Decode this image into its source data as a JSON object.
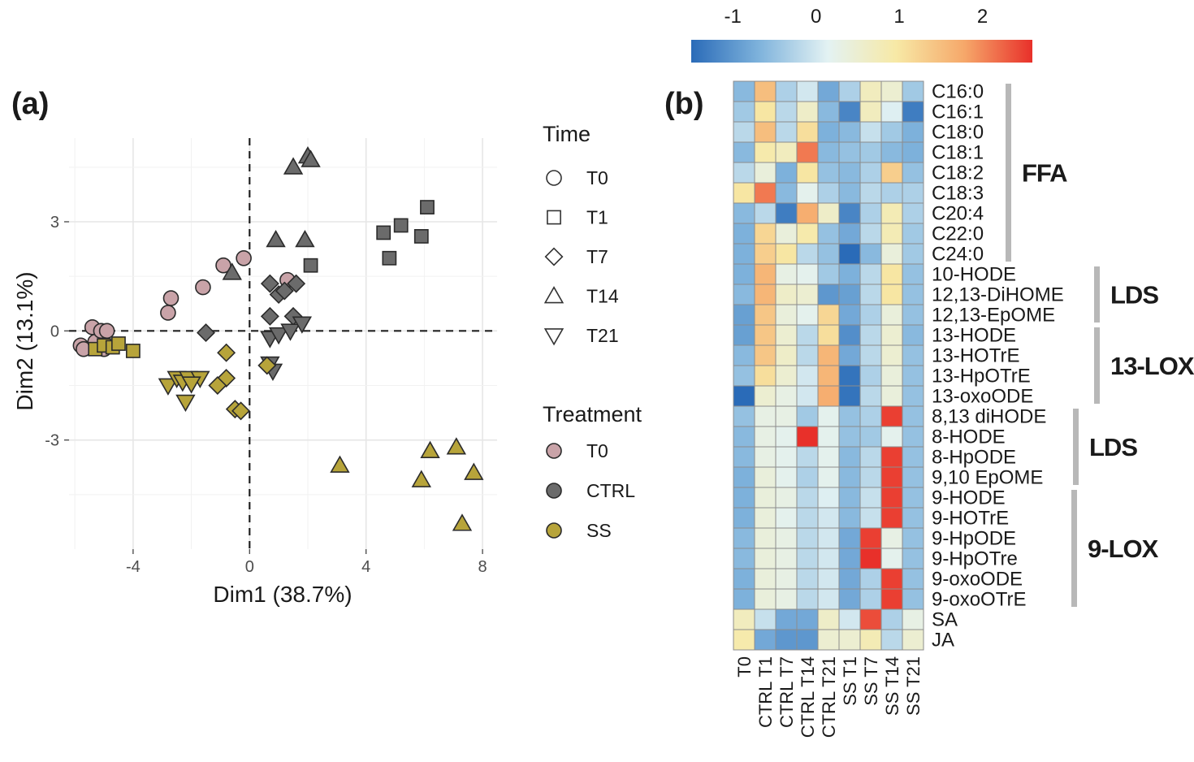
{
  "figure": {
    "panel_a_label": "(a)",
    "panel_b_label": "(b)"
  },
  "chart_data": [
    {
      "type": "scatter",
      "title": "",
      "xlabel": "Dim1 (38.7%)",
      "ylabel": "Dim2 (13.1%)",
      "xlim": [
        -6.2,
        8.5
      ],
      "ylim": [
        -6.0,
        5.3
      ],
      "xticks": [
        -4,
        0,
        4,
        8
      ],
      "xtick_labels": [
        "-4",
        "0",
        "4",
        "8"
      ],
      "yticks": [
        3,
        0,
        -3
      ],
      "ytick_labels": [
        "3",
        "0",
        "-3"
      ],
      "grid": true,
      "reference_lines": {
        "x": 0,
        "y": 0
      },
      "legend_time": {
        "title": "Time",
        "items": [
          {
            "label": "T0",
            "shape": "circle"
          },
          {
            "label": "T1",
            "shape": "square"
          },
          {
            "label": "T7",
            "shape": "diamond"
          },
          {
            "label": "T14",
            "shape": "triangle-up"
          },
          {
            "label": "T21",
            "shape": "triangle-down"
          }
        ]
      },
      "legend_treatment": {
        "title": "Treatment",
        "items": [
          {
            "label": "T0",
            "color": "#c9a3a8"
          },
          {
            "label": "CTRL",
            "color": "#6b6b6b"
          },
          {
            "label": "SS",
            "color": "#b7a43a"
          }
        ]
      },
      "series": [
        {
          "name": "T0",
          "points": [
            {
              "x": -5.8,
              "y": -0.4,
              "shape": "circle"
            },
            {
              "x": -5.7,
              "y": -0.5,
              "shape": "circle"
            },
            {
              "x": -5.4,
              "y": 0.1,
              "shape": "circle"
            },
            {
              "x": -5.3,
              "y": -0.3,
              "shape": "circle"
            },
            {
              "x": -5.1,
              "y": 0.0,
              "shape": "circle"
            },
            {
              "x": -5.0,
              "y": -0.5,
              "shape": "circle"
            },
            {
              "x": -4.9,
              "y": 0.0,
              "shape": "circle"
            },
            {
              "x": -2.7,
              "y": 0.9,
              "shape": "circle"
            },
            {
              "x": -2.8,
              "y": 0.5,
              "shape": "circle"
            },
            {
              "x": -1.6,
              "y": 1.2,
              "shape": "circle"
            },
            {
              "x": -0.9,
              "y": 1.8,
              "shape": "circle"
            },
            {
              "x": -0.2,
              "y": 2.0,
              "shape": "circle"
            },
            {
              "x": 1.3,
              "y": 1.4,
              "shape": "circle"
            }
          ]
        },
        {
          "name": "CTRL",
          "points": [
            {
              "x": 4.6,
              "y": 2.7,
              "shape": "square"
            },
            {
              "x": 4.8,
              "y": 2.0,
              "shape": "square"
            },
            {
              "x": 5.2,
              "y": 2.9,
              "shape": "square"
            },
            {
              "x": 5.9,
              "y": 2.6,
              "shape": "square"
            },
            {
              "x": 6.1,
              "y": 3.4,
              "shape": "square"
            },
            {
              "x": 2.1,
              "y": 1.8,
              "shape": "square"
            },
            {
              "x": -1.5,
              "y": -0.05,
              "shape": "diamond"
            },
            {
              "x": 0.7,
              "y": 1.3,
              "shape": "diamond"
            },
            {
              "x": 1.0,
              "y": 1.0,
              "shape": "diamond"
            },
            {
              "x": 1.2,
              "y": 1.1,
              "shape": "diamond"
            },
            {
              "x": 1.6,
              "y": 1.3,
              "shape": "diamond"
            },
            {
              "x": 0.7,
              "y": 0.4,
              "shape": "diamond"
            },
            {
              "x": 1.5,
              "y": 0.4,
              "shape": "diamond"
            },
            {
              "x": 1.5,
              "y": 4.5,
              "shape": "triangle-up"
            },
            {
              "x": 2.0,
              "y": 4.8,
              "shape": "triangle-up"
            },
            {
              "x": 2.1,
              "y": 4.7,
              "shape": "triangle-up"
            },
            {
              "x": 0.9,
              "y": 2.5,
              "shape": "triangle-up"
            },
            {
              "x": 1.9,
              "y": 2.5,
              "shape": "triangle-up"
            },
            {
              "x": -0.6,
              "y": 1.6,
              "shape": "triangle-up"
            },
            {
              "x": 0.7,
              "y": -0.2,
              "shape": "triangle-down"
            },
            {
              "x": 1.0,
              "y": -0.1,
              "shape": "triangle-down"
            },
            {
              "x": 1.4,
              "y": 0.0,
              "shape": "triangle-down"
            },
            {
              "x": 1.8,
              "y": 0.2,
              "shape": "triangle-down"
            },
            {
              "x": 0.7,
              "y": -0.9,
              "shape": "triangle-down"
            },
            {
              "x": 0.8,
              "y": -1.1,
              "shape": "triangle-down"
            }
          ]
        },
        {
          "name": "SS",
          "points": [
            {
              "x": -5.3,
              "y": -0.5,
              "shape": "square"
            },
            {
              "x": -5.0,
              "y": -0.4,
              "shape": "square"
            },
            {
              "x": -4.7,
              "y": -0.45,
              "shape": "square"
            },
            {
              "x": -4.5,
              "y": -0.35,
              "shape": "square"
            },
            {
              "x": -4.0,
              "y": -0.55,
              "shape": "square"
            },
            {
              "x": -0.8,
              "y": -0.6,
              "shape": "diamond"
            },
            {
              "x": -0.8,
              "y": -1.3,
              "shape": "diamond"
            },
            {
              "x": -1.1,
              "y": -1.5,
              "shape": "diamond"
            },
            {
              "x": -0.5,
              "y": -2.15,
              "shape": "diamond"
            },
            {
              "x": -0.3,
              "y": -2.2,
              "shape": "diamond"
            },
            {
              "x": 0.6,
              "y": -0.95,
              "shape": "diamond"
            },
            {
              "x": 3.1,
              "y": -3.7,
              "shape": "triangle-up"
            },
            {
              "x": 5.9,
              "y": -4.1,
              "shape": "triangle-up"
            },
            {
              "x": 6.2,
              "y": -3.3,
              "shape": "triangle-up"
            },
            {
              "x": 7.1,
              "y": -3.2,
              "shape": "triangle-up"
            },
            {
              "x": 7.7,
              "y": -3.9,
              "shape": "triangle-up"
            },
            {
              "x": 7.3,
              "y": -5.3,
              "shape": "triangle-up"
            },
            {
              "x": -2.8,
              "y": -1.5,
              "shape": "triangle-down"
            },
            {
              "x": -2.5,
              "y": -1.3,
              "shape": "triangle-down"
            },
            {
              "x": -2.3,
              "y": -1.4,
              "shape": "triangle-down"
            },
            {
              "x": -2.1,
              "y": -1.3,
              "shape": "triangle-down"
            },
            {
              "x": -1.7,
              "y": -1.3,
              "shape": "triangle-down"
            },
            {
              "x": -2.0,
              "y": -1.45,
              "shape": "triangle-down"
            },
            {
              "x": -2.2,
              "y": -1.95,
              "shape": "triangle-down"
            }
          ]
        }
      ]
    },
    {
      "type": "heatmap",
      "title": "",
      "colorbar": {
        "ticks": [
          -1,
          0,
          1,
          2
        ],
        "tick_labels": [
          "-1",
          "0",
          "1",
          "2"
        ],
        "range": [
          -1.5,
          2.6
        ],
        "colors": [
          "#2a6bb8",
          "#7fb3dc",
          "#e3f2f3",
          "#f7e9a6",
          "#f6a86a",
          "#e8302a"
        ]
      },
      "columns": [
        "T0",
        "CTRL T1",
        "CTRL T7",
        "CTRL T14",
        "CTRL T21",
        "SS T1",
        "SS T7",
        "SS T14",
        "SS T21"
      ],
      "rows": [
        "C16:0",
        "C16:1",
        "C18:0",
        "C18:1",
        "C18:2",
        "C18:3",
        "C20:4",
        "C22:0",
        "C24:0",
        "10-HODE",
        "12,13-DiHOME",
        "12,13-EpOME",
        "13-HODE",
        "13-HOTrE",
        "13-HpOTrE",
        "13-oxoODE",
        "8,13 diHODE",
        "8-HODE",
        "8-HpODE",
        "9,10 EpOME",
        "9-HODE",
        "9-HOTrE",
        "9-HpODE",
        "9-HpOTre",
        "9-oxoODE",
        "9-oxoOTrE",
        "SA",
        "JA"
      ],
      "values": [
        [
          -0.6,
          1.5,
          -0.3,
          0.0,
          -0.8,
          -0.3,
          0.7,
          0.5,
          -0.4
        ],
        [
          -0.4,
          1.0,
          -0.2,
          0.6,
          -0.6,
          -1.2,
          0.7,
          0.1,
          -1.3
        ],
        [
          -0.2,
          1.5,
          -0.2,
          1.1,
          -0.7,
          -0.6,
          -0.1,
          -0.4,
          -0.7
        ],
        [
          -0.6,
          0.9,
          0.7,
          2.1,
          -0.6,
          -0.5,
          -0.4,
          -0.6,
          -0.7
        ],
        [
          -0.2,
          0.4,
          -0.7,
          1.0,
          -0.5,
          -0.6,
          -0.3,
          1.3,
          -0.5
        ],
        [
          1.0,
          2.1,
          -0.6,
          0.2,
          -0.3,
          -0.6,
          -0.2,
          -0.3,
          -0.3
        ],
        [
          -0.6,
          -0.2,
          -1.3,
          1.7,
          0.6,
          -1.2,
          -0.3,
          0.8,
          -0.3
        ],
        [
          -0.7,
          1.2,
          0.4,
          0.9,
          -0.5,
          -0.8,
          -0.2,
          0.8,
          -0.4
        ],
        [
          -0.7,
          1.3,
          1.0,
          -0.2,
          -0.5,
          -1.5,
          -0.6,
          0.4,
          -0.4
        ],
        [
          -0.7,
          1.6,
          0.3,
          0.2,
          -0.4,
          -0.7,
          -0.2,
          1.0,
          -0.5
        ],
        [
          -0.6,
          1.6,
          0.6,
          0.5,
          -1.0,
          -0.9,
          -0.2,
          1.0,
          -0.5
        ],
        [
          -0.9,
          1.4,
          0.4,
          0.2,
          1.2,
          -0.8,
          -0.3,
          0.4,
          -0.5
        ],
        [
          -0.9,
          1.4,
          0.5,
          -0.2,
          1.1,
          -1.1,
          -0.2,
          0.5,
          -0.6
        ],
        [
          -0.6,
          1.4,
          0.6,
          -0.2,
          1.6,
          -0.8,
          -0.2,
          0.5,
          -0.5
        ],
        [
          -0.5,
          1.1,
          0.5,
          0.0,
          1.6,
          -1.4,
          -0.3,
          0.4,
          -0.5
        ],
        [
          -1.5,
          0.5,
          0.3,
          0.0,
          1.7,
          -1.4,
          -0.2,
          0.4,
          -0.5
        ],
        [
          -0.5,
          0.3,
          0.3,
          -0.4,
          0.2,
          -0.5,
          -0.3,
          2.5,
          -0.5
        ],
        [
          -0.6,
          0.3,
          0.2,
          2.6,
          0.2,
          -0.5,
          -0.4,
          0.2,
          -0.5
        ],
        [
          -0.6,
          0.3,
          0.2,
          -0.2,
          0.2,
          -0.6,
          -0.2,
          2.5,
          -0.5
        ],
        [
          -0.7,
          0.4,
          0.2,
          -0.3,
          0.2,
          -0.6,
          -0.2,
          2.5,
          -0.5
        ],
        [
          -0.7,
          0.4,
          0.3,
          -0.2,
          0.1,
          -0.6,
          -0.1,
          2.5,
          -0.5
        ],
        [
          -0.7,
          0.4,
          0.2,
          -0.2,
          0.0,
          -0.6,
          -0.1,
          2.5,
          -0.5
        ],
        [
          -0.6,
          0.4,
          0.3,
          -0.2,
          0.0,
          -0.8,
          2.5,
          0.3,
          -0.5
        ],
        [
          -0.6,
          0.4,
          0.3,
          -0.2,
          0.0,
          -0.8,
          2.6,
          0.2,
          -0.5
        ],
        [
          -0.7,
          0.4,
          0.3,
          -0.2,
          0.0,
          -0.8,
          -0.3,
          2.5,
          -0.5
        ],
        [
          -0.7,
          0.4,
          0.3,
          -0.2,
          0.0,
          -0.8,
          -0.3,
          2.5,
          -0.5
        ],
        [
          0.7,
          -0.1,
          -0.8,
          -0.8,
          0.6,
          0.0,
          2.4,
          -0.3,
          0.3
        ],
        [
          0.9,
          -0.8,
          -1.0,
          -1.0,
          0.5,
          0.5,
          0.8,
          -0.2,
          0.5
        ]
      ],
      "groups": [
        {
          "label": "FFA",
          "from_row": 0,
          "to_row": 8
        },
        {
          "label": "LDS",
          "from_row": 9,
          "to_row": 11
        },
        {
          "label": "13-LOX",
          "from_row": 12,
          "to_row": 15
        },
        {
          "label": "LDS",
          "from_row": 16,
          "to_row": 19
        },
        {
          "label": "9-LOX",
          "from_row": 20,
          "to_row": 25
        }
      ]
    }
  ]
}
